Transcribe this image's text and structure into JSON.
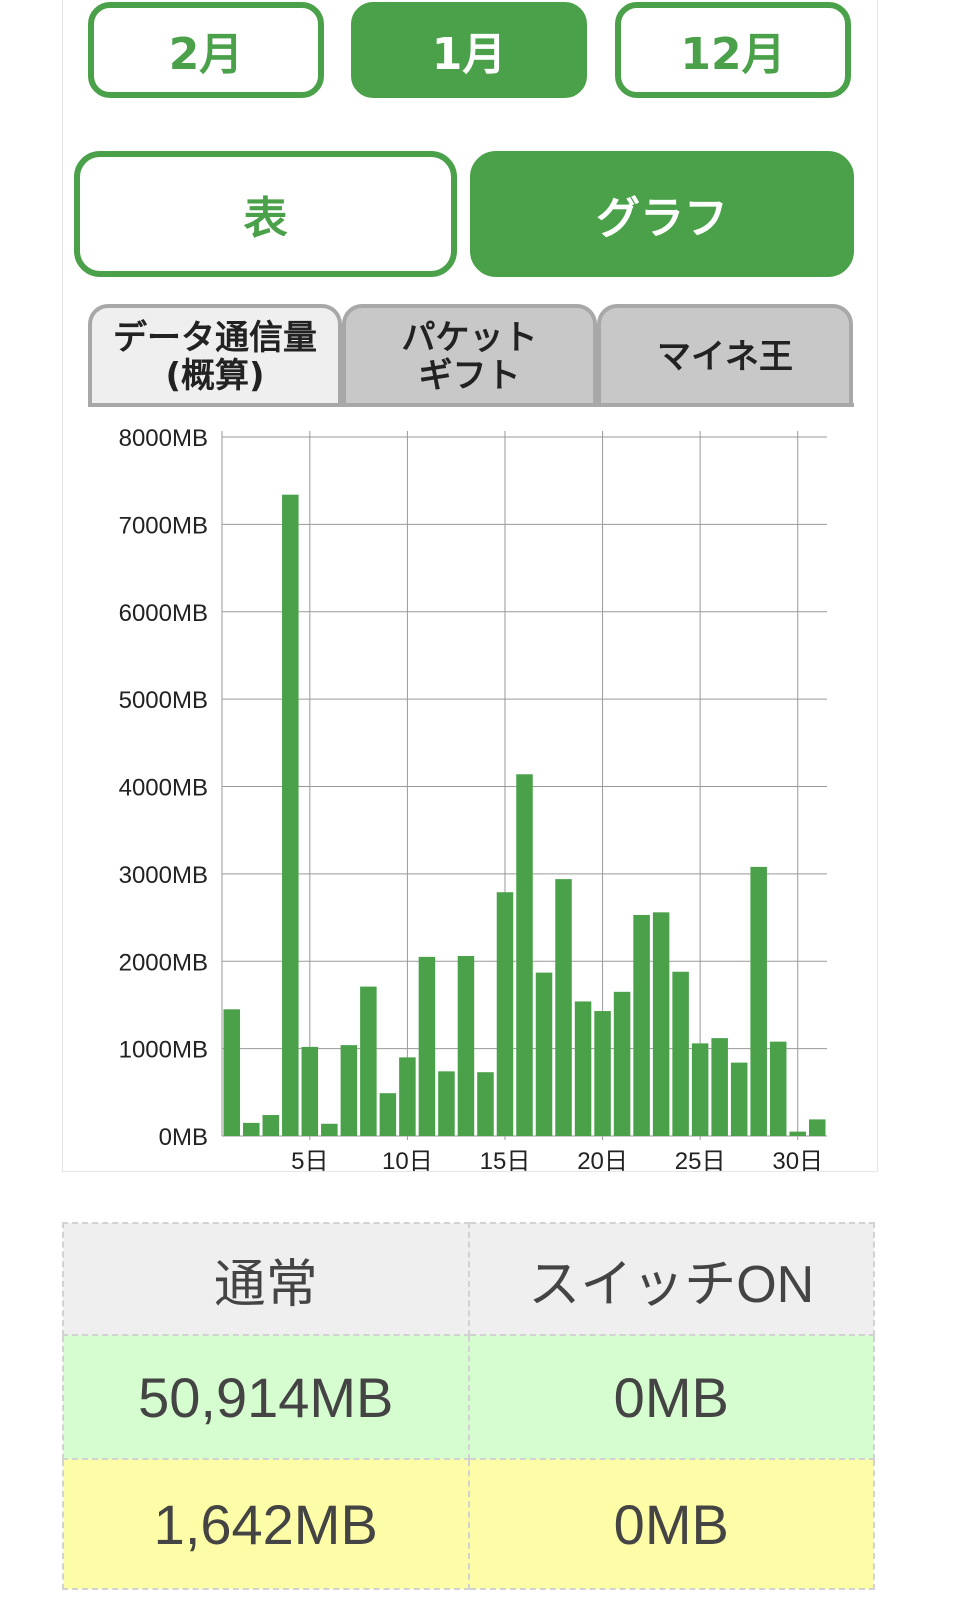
{
  "months": [
    {
      "label": "2月",
      "active": false
    },
    {
      "label": "1月",
      "active": true
    },
    {
      "label": "12月",
      "active": false
    }
  ],
  "views": {
    "table_label": "表",
    "graph_label": "グラフ",
    "active": "graph"
  },
  "tabs": {
    "data_line1": "データ通信量",
    "data_line2": "(概算)",
    "gift_line1": "パケット",
    "gift_line2": "ギフト",
    "mineo": "マイネ王",
    "active": "data"
  },
  "colors": {
    "accent": "#4aa14a",
    "bar": "#4aa14a",
    "row_green": "#d6fdd0",
    "row_yellow": "#fdfca7"
  },
  "chart_data": {
    "type": "bar",
    "x": [
      1,
      2,
      3,
      4,
      5,
      6,
      7,
      8,
      9,
      10,
      11,
      12,
      13,
      14,
      15,
      16,
      17,
      18,
      19,
      20,
      21,
      22,
      23,
      24,
      25,
      26,
      27,
      28,
      29,
      30,
      31
    ],
    "x_tick_values": [
      5,
      10,
      15,
      20,
      25,
      30
    ],
    "x_tick_labels": [
      "5日",
      "10日",
      "15日",
      "20日",
      "25日",
      "30日"
    ],
    "values": [
      1450,
      150,
      240,
      7340,
      1020,
      140,
      1040,
      1710,
      490,
      900,
      2050,
      740,
      2060,
      730,
      2790,
      4140,
      1870,
      2940,
      1540,
      1430,
      1650,
      2530,
      2560,
      1880,
      1060,
      1120,
      840,
      3080,
      1080,
      50,
      190
    ],
    "ylim": [
      0,
      8000
    ],
    "y_tick_labels": [
      "0MB",
      "1000MB",
      "2000MB",
      "3000MB",
      "4000MB",
      "5000MB",
      "6000MB",
      "7000MB",
      "8000MB"
    ],
    "grid": true
  },
  "summary": {
    "headers": [
      "通常",
      "スイッチON"
    ],
    "rows": [
      [
        "50,914MB",
        "0MB"
      ],
      [
        "1,642MB",
        "0MB"
      ]
    ]
  }
}
